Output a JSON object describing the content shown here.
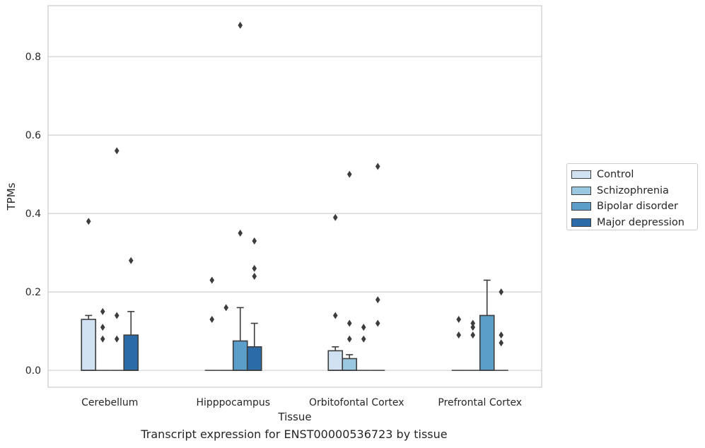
{
  "chart_data": {
    "type": "box",
    "title": "",
    "caption": "Transcript expression for ENST00000536723 by tissue",
    "xlabel": "Tissue",
    "ylabel": "TPMs",
    "ylim": [
      -0.043,
      0.93
    ],
    "yticks": [
      0.0,
      0.2,
      0.4,
      0.6,
      0.8
    ],
    "ytick_labels": [
      "0.0",
      "0.2",
      "0.4",
      "0.6",
      "0.8"
    ],
    "grid": "horizontal",
    "legend_position": "right",
    "categories": [
      "Cerebellum",
      "Hipppocampus",
      "Orbitofontal Cortex",
      "Prefrontal Cortex"
    ],
    "series": [
      {
        "name": "Control",
        "color": "#d0e1f2",
        "boxes": [
          {
            "q1": 0.0,
            "median": 0.0,
            "q3": 0.13,
            "whisker_low": 0.0,
            "whisker_high": 0.14,
            "outliers": [
              0.38
            ]
          },
          {
            "q1": 0.0,
            "median": 0.0,
            "q3": 0.0,
            "whisker_low": 0.0,
            "whisker_high": 0.0,
            "outliers": [
              0.13,
              0.23
            ]
          },
          {
            "q1": 0.0,
            "median": 0.0,
            "q3": 0.05,
            "whisker_low": 0.0,
            "whisker_high": 0.06,
            "outliers": [
              0.14,
              0.39
            ]
          },
          {
            "q1": 0.0,
            "median": 0.0,
            "q3": 0.0,
            "whisker_low": 0.0,
            "whisker_high": 0.0,
            "outliers": [
              0.09,
              0.13
            ]
          }
        ]
      },
      {
        "name": "Schizophrenia",
        "color": "#9ac8e0",
        "boxes": [
          {
            "q1": 0.0,
            "median": 0.0,
            "q3": 0.0,
            "whisker_low": 0.0,
            "whisker_high": 0.0,
            "outliers": [
              0.08,
              0.11,
              0.15
            ]
          },
          {
            "q1": 0.0,
            "median": 0.0,
            "q3": 0.0,
            "whisker_low": 0.0,
            "whisker_high": 0.0,
            "outliers": [
              0.16
            ]
          },
          {
            "q1": 0.0,
            "median": 0.0,
            "q3": 0.03,
            "whisker_low": 0.0,
            "whisker_high": 0.04,
            "outliers": [
              0.08,
              0.12,
              0.5
            ]
          },
          {
            "q1": 0.0,
            "median": 0.0,
            "q3": 0.0,
            "whisker_low": 0.0,
            "whisker_high": 0.0,
            "outliers": [
              0.09,
              0.11,
              0.12
            ]
          }
        ]
      },
      {
        "name": "Bipolar disorder",
        "color": "#5a9ec9",
        "boxes": [
          {
            "q1": 0.0,
            "median": 0.0,
            "q3": 0.0,
            "whisker_low": 0.0,
            "whisker_high": 0.0,
            "outliers": [
              0.08,
              0.14,
              0.56
            ]
          },
          {
            "q1": 0.0,
            "median": 0.0,
            "q3": 0.075,
            "whisker_low": 0.0,
            "whisker_high": 0.16,
            "outliers": [
              0.35,
              0.88
            ]
          },
          {
            "q1": 0.0,
            "median": 0.0,
            "q3": 0.0,
            "whisker_low": 0.0,
            "whisker_high": 0.0,
            "outliers": [
              0.08,
              0.11
            ]
          },
          {
            "q1": 0.0,
            "median": 0.0,
            "q3": 0.14,
            "whisker_low": 0.0,
            "whisker_high": 0.23,
            "outliers": []
          }
        ]
      },
      {
        "name": "Major depression",
        "color": "#2b6ca8",
        "boxes": [
          {
            "q1": 0.0,
            "median": 0.0,
            "q3": 0.09,
            "whisker_low": 0.0,
            "whisker_high": 0.15,
            "outliers": [
              0.28
            ]
          },
          {
            "q1": 0.0,
            "median": 0.0,
            "q3": 0.06,
            "whisker_low": 0.0,
            "whisker_high": 0.12,
            "outliers": [
              0.24,
              0.26,
              0.33
            ]
          },
          {
            "q1": 0.0,
            "median": 0.0,
            "q3": 0.0,
            "whisker_low": 0.0,
            "whisker_high": 0.0,
            "outliers": [
              0.12,
              0.18,
              0.52
            ]
          },
          {
            "q1": 0.0,
            "median": 0.0,
            "q3": 0.0,
            "whisker_low": 0.0,
            "whisker_high": 0.0,
            "outliers": [
              0.07,
              0.09,
              0.2
            ]
          }
        ]
      }
    ]
  }
}
